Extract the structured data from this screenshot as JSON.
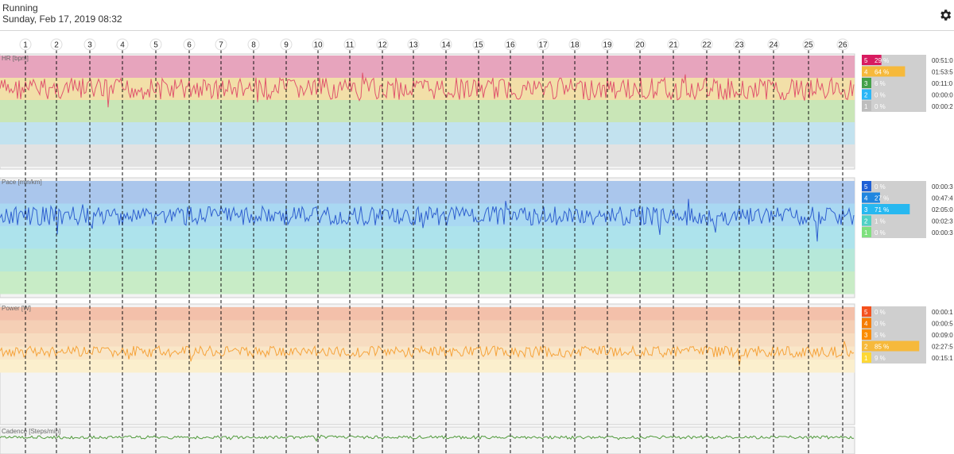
{
  "header": {
    "activity_type": "Running",
    "date": "Sunday, Feb 17, 2019 08:32",
    "settings_icon": "gear-icon"
  },
  "laps": [
    "1",
    "2",
    "3",
    "4",
    "5",
    "6",
    "7",
    "8",
    "9",
    "10",
    "11",
    "12",
    "13",
    "14",
    "15",
    "16",
    "17",
    "18",
    "19",
    "20",
    "21",
    "22",
    "23",
    "24",
    "25",
    "26"
  ],
  "panels": [
    {
      "id": "hr",
      "label": "HR [bpm]",
      "line_color": "#e0556e",
      "zone_colors": [
        "#e7a4bd",
        "#f2dfa8",
        "#c9e6b7",
        "#c2e2ef",
        "#e2e2e2"
      ],
      "zones": [
        {
          "num": "5",
          "pct": "29 %",
          "time": "00:51:0",
          "color": "#d81b60",
          "fill": 0.29
        },
        {
          "num": "4",
          "pct": "64 %",
          "time": "01:53:5",
          "color": "#f6b93b",
          "fill": 0.64
        },
        {
          "num": "3",
          "pct": "6 %",
          "time": "00:11:0",
          "color": "#43a047",
          "fill": 0.06
        },
        {
          "num": "2",
          "pct": "0 %",
          "time": "00:00:0",
          "color": "#29b6f6",
          "fill": 0.0
        },
        {
          "num": "1",
          "pct": "0 %",
          "time": "00:00:2",
          "color": "#bdbdbd",
          "fill": 0.0
        }
      ]
    },
    {
      "id": "pace",
      "label": "Pace [min/km]",
      "line_color": "#2f5fcf",
      "zone_colors": [
        "#aac6ec",
        "#a9d8f2",
        "#ade3ec",
        "#b6e8d9",
        "#c8ecc6"
      ],
      "zones": [
        {
          "num": "5",
          "pct": "0 %",
          "time": "00:00:3",
          "color": "#1e5fd6",
          "fill": 0.0
        },
        {
          "num": "4",
          "pct": "27 %",
          "time": "00:47:4",
          "color": "#1f86e0",
          "fill": 0.27
        },
        {
          "num": "3",
          "pct": "71 %",
          "time": "02:05:0",
          "color": "#27b8f0",
          "fill": 0.71
        },
        {
          "num": "2",
          "pct": "1 %",
          "time": "00:02:3",
          "color": "#4fd1c5",
          "fill": 0.01
        },
        {
          "num": "1",
          "pct": "0 %",
          "time": "00:00:3",
          "color": "#7ee07e",
          "fill": 0.0
        }
      ]
    },
    {
      "id": "power",
      "label": "Power [W]",
      "line_color": "#f6a33b",
      "zone_colors": [
        "#f3c0aa",
        "#f5cfb5",
        "#f7dcc0",
        "#f9e6c8",
        "#fbefcd"
      ],
      "zones": [
        {
          "num": "5",
          "pct": "0 %",
          "time": "00:00:1",
          "color": "#f4511e",
          "fill": 0.0
        },
        {
          "num": "4",
          "pct": "0 %",
          "time": "00:00:5",
          "color": "#f57c00",
          "fill": 0.0
        },
        {
          "num": "3",
          "pct": "5 %",
          "time": "00:09:0",
          "color": "#fb8c00",
          "fill": 0.05
        },
        {
          "num": "2",
          "pct": "85 %",
          "time": "02:27:5",
          "color": "#f6b93b",
          "fill": 0.85
        },
        {
          "num": "1",
          "pct": "9 %",
          "time": "00:15:1",
          "color": "#fdd835",
          "fill": 0.09
        }
      ]
    },
    {
      "id": "cadence",
      "label": "Cadence [Steps/min]",
      "line_color": "#4f9a3a"
    }
  ]
}
